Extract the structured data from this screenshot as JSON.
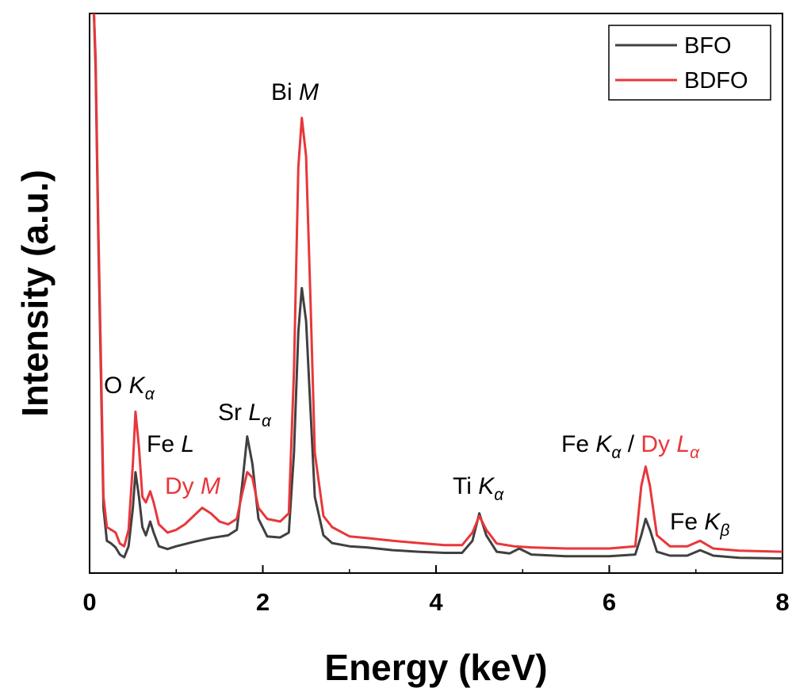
{
  "chart_data": {
    "type": "line",
    "xlabel": "Energy (keV)",
    "ylabel": "Intensity (a.u.)",
    "xlim": [
      0,
      8
    ],
    "ylim": [
      0,
      100
    ],
    "xticks": [
      "0",
      "2",
      "4",
      "6",
      "8"
    ],
    "y_tick_labels_shown": false,
    "grid": false,
    "legend_position": "top-right",
    "series": [
      {
        "name": "BFO",
        "color": "#404040",
        "points": [
          [
            0.05,
            100
          ],
          [
            0.07,
            90
          ],
          [
            0.1,
            60
          ],
          [
            0.13,
            35
          ],
          [
            0.16,
            10
          ],
          [
            0.2,
            4.0
          ],
          [
            0.25,
            3.5
          ],
          [
            0.3,
            2.8
          ],
          [
            0.35,
            1.5
          ],
          [
            0.4,
            1.0
          ],
          [
            0.45,
            3.0
          ],
          [
            0.5,
            10.0
          ],
          [
            0.53,
            16.5
          ],
          [
            0.57,
            12.0
          ],
          [
            0.61,
            6.5
          ],
          [
            0.65,
            5.0
          ],
          [
            0.7,
            7.5
          ],
          [
            0.74,
            5.5
          ],
          [
            0.8,
            3.0
          ],
          [
            0.9,
            2.5
          ],
          [
            1.0,
            3.0
          ],
          [
            1.2,
            3.8
          ],
          [
            1.4,
            4.5
          ],
          [
            1.6,
            5.0
          ],
          [
            1.7,
            6.0
          ],
          [
            1.76,
            14.0
          ],
          [
            1.82,
            23.0
          ],
          [
            1.88,
            18.0
          ],
          [
            1.95,
            8.0
          ],
          [
            2.05,
            4.8
          ],
          [
            2.2,
            4.6
          ],
          [
            2.3,
            5.5
          ],
          [
            2.36,
            20.0
          ],
          [
            2.41,
            42.0
          ],
          [
            2.45,
            50.0
          ],
          [
            2.5,
            44.0
          ],
          [
            2.55,
            28.0
          ],
          [
            2.6,
            12.0
          ],
          [
            2.7,
            5.0
          ],
          [
            2.8,
            3.6
          ],
          [
            3.0,
            3.0
          ],
          [
            3.2,
            2.8
          ],
          [
            3.5,
            2.3
          ],
          [
            3.8,
            2.0
          ],
          [
            4.1,
            1.8
          ],
          [
            4.3,
            1.8
          ],
          [
            4.42,
            4.0
          ],
          [
            4.5,
            9.0
          ],
          [
            4.58,
            5.0
          ],
          [
            4.7,
            2.0
          ],
          [
            4.85,
            1.7
          ],
          [
            4.96,
            2.6
          ],
          [
            5.1,
            1.5
          ],
          [
            5.5,
            1.2
          ],
          [
            6.0,
            1.2
          ],
          [
            6.3,
            1.5
          ],
          [
            6.37,
            5.0
          ],
          [
            6.42,
            8.0
          ],
          [
            6.47,
            6.0
          ],
          [
            6.55,
            2.0
          ],
          [
            6.7,
            1.3
          ],
          [
            6.9,
            1.3
          ],
          [
            7.05,
            2.3
          ],
          [
            7.2,
            1.3
          ],
          [
            7.5,
            0.9
          ],
          [
            8.0,
            0.8
          ]
        ]
      },
      {
        "name": "BDFO",
        "color": "#e8373b",
        "points": [
          [
            0.05,
            100
          ],
          [
            0.07,
            92
          ],
          [
            0.1,
            62
          ],
          [
            0.13,
            38
          ],
          [
            0.16,
            12
          ],
          [
            0.2,
            6.5
          ],
          [
            0.25,
            6.0
          ],
          [
            0.3,
            5.5
          ],
          [
            0.35,
            3.5
          ],
          [
            0.4,
            3.0
          ],
          [
            0.45,
            6.0
          ],
          [
            0.5,
            18.0
          ],
          [
            0.53,
            27.5
          ],
          [
            0.57,
            21.0
          ],
          [
            0.61,
            12.0
          ],
          [
            0.65,
            11.0
          ],
          [
            0.7,
            13.0
          ],
          [
            0.74,
            11.0
          ],
          [
            0.8,
            7.0
          ],
          [
            0.9,
            5.5
          ],
          [
            1.0,
            6.0
          ],
          [
            1.1,
            7.0
          ],
          [
            1.2,
            8.5
          ],
          [
            1.3,
            10.0
          ],
          [
            1.4,
            9.0
          ],
          [
            1.5,
            7.5
          ],
          [
            1.6,
            7.0
          ],
          [
            1.7,
            8.0
          ],
          [
            1.76,
            12.5
          ],
          [
            1.82,
            16.5
          ],
          [
            1.88,
            15.5
          ],
          [
            1.95,
            10.0
          ],
          [
            2.05,
            8.0
          ],
          [
            2.2,
            7.5
          ],
          [
            2.3,
            9.0
          ],
          [
            2.36,
            35.0
          ],
          [
            2.41,
            72.0
          ],
          [
            2.45,
            81.0
          ],
          [
            2.5,
            74.0
          ],
          [
            2.55,
            48.0
          ],
          [
            2.6,
            20.0
          ],
          [
            2.7,
            8.5
          ],
          [
            2.8,
            6.5
          ],
          [
            3.0,
            4.8
          ],
          [
            3.2,
            4.5
          ],
          [
            3.5,
            4.0
          ],
          [
            3.8,
            3.6
          ],
          [
            4.1,
            3.2
          ],
          [
            4.3,
            3.2
          ],
          [
            4.42,
            5.5
          ],
          [
            4.5,
            8.5
          ],
          [
            4.58,
            6.0
          ],
          [
            4.7,
            3.5
          ],
          [
            4.9,
            3.0
          ],
          [
            5.1,
            2.8
          ],
          [
            5.5,
            2.6
          ],
          [
            6.0,
            2.6
          ],
          [
            6.3,
            3.0
          ],
          [
            6.37,
            14.0
          ],
          [
            6.42,
            17.5
          ],
          [
            6.47,
            14.0
          ],
          [
            6.55,
            5.0
          ],
          [
            6.7,
            3.0
          ],
          [
            6.9,
            3.0
          ],
          [
            7.05,
            4.0
          ],
          [
            7.2,
            2.6
          ],
          [
            7.5,
            2.2
          ],
          [
            8.0,
            2.0
          ]
        ]
      }
    ],
    "annotations": [
      {
        "id": "o-ka",
        "prefix": "O ",
        "italic": "K",
        "sub": "α",
        "color": "#000000",
        "x": 0.53
      },
      {
        "id": "fe-l",
        "prefix": "Fe ",
        "italic": "L",
        "sub": "",
        "color": "#000000",
        "x": 0.7
      },
      {
        "id": "dy-m",
        "prefix": "Dy ",
        "italic": "M",
        "sub": "",
        "color": "#e8373b",
        "x": 1.3
      },
      {
        "id": "sr-la",
        "prefix": "Sr ",
        "italic": "L",
        "sub": "α",
        "color": "#000000",
        "x": 1.82
      },
      {
        "id": "bi-m",
        "prefix": "Bi ",
        "italic": "M",
        "sub": "",
        "color": "#000000",
        "x": 2.45
      },
      {
        "id": "ti-ka",
        "prefix": "Ti ",
        "italic": "K",
        "sub": "α",
        "color": "#000000",
        "x": 4.5
      },
      {
        "id": "fe-kb",
        "prefix": "Fe ",
        "italic": "K",
        "sub": "β",
        "color": "#000000",
        "x": 7.05
      }
    ],
    "compound_annotation": {
      "part1_prefix": "Fe ",
      "part1_italic": "K",
      "part1_sub": "α",
      "part1_color": "#000000",
      "separator": " / ",
      "part2_prefix": "Dy ",
      "part2_italic": "L",
      "part2_sub": "α",
      "part2_color": "#e8373b",
      "x": 6.42
    }
  }
}
